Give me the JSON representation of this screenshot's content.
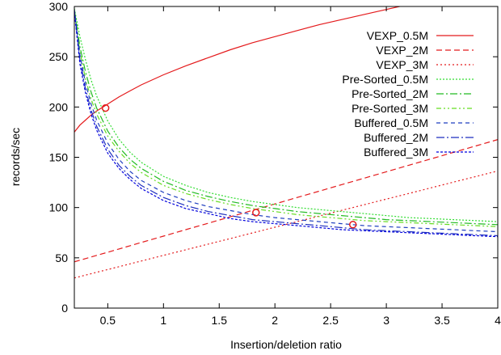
{
  "chart_data": {
    "type": "line",
    "title": "",
    "xlabel": "Insertion/deletion ratio",
    "ylabel": "records/sec",
    "xlim": [
      0.2,
      4
    ],
    "ylim": [
      0,
      300
    ],
    "x_ticks": [
      "0.5",
      "1",
      "1.5",
      "2",
      "2.5",
      "3",
      "3.5",
      "4"
    ],
    "x_tick_values": [
      0.5,
      1,
      1.5,
      2,
      2.5,
      3,
      3.5,
      4
    ],
    "y_ticks": [
      "0",
      "50",
      "100",
      "150",
      "200",
      "250",
      "300"
    ],
    "y_tick_values": [
      0,
      50,
      100,
      150,
      200,
      250,
      300
    ],
    "grid": false,
    "legend_position": "top-right",
    "x": [
      0.2,
      0.25,
      0.3,
      0.35,
      0.4,
      0.5,
      0.6,
      0.7,
      0.8,
      1.0,
      1.2,
      1.4,
      1.6,
      1.8,
      2.0,
      2.2,
      2.4,
      2.6,
      2.8,
      3.0,
      3.2,
      3.4,
      3.6,
      3.8,
      4.0
    ],
    "series": [
      {
        "name": "VEXP_0.5M",
        "color": "#e41a1c",
        "dash": "",
        "values": [
          175,
          182,
          187,
          192,
          196,
          203,
          210,
          216,
          222,
          232,
          241,
          249,
          257,
          264,
          270,
          276,
          282,
          287,
          292,
          297,
          302,
          306,
          310,
          314,
          318
        ]
      },
      {
        "name": "VEXP_2M",
        "color": "#e41a1c",
        "dash": "7,4",
        "values": [
          46,
          47.6,
          49.2,
          50.8,
          52.4,
          55.6,
          58.8,
          62,
          65.2,
          71.6,
          78,
          84.4,
          90.8,
          97.2,
          103.6,
          110,
          116.4,
          122.8,
          129.2,
          135.6,
          142,
          148.4,
          154.8,
          161.2,
          167.6
        ]
      },
      {
        "name": "VEXP_3M",
        "color": "#e41a1c",
        "dash": "2,3",
        "values": [
          30,
          31.4,
          32.8,
          34.2,
          35.6,
          38.4,
          41.2,
          44,
          46.8,
          52.4,
          58,
          63.6,
          69.2,
          74.8,
          80.4,
          86,
          91.6,
          97.2,
          102.8,
          108.4,
          114,
          119.6,
          125.2,
          130.8,
          136.4
        ]
      },
      {
        "name": "Pre-Sorted_0.5M",
        "color": "#33dd33",
        "dash": "2,2",
        "values": [
          298,
          270,
          247,
          227,
          211,
          186,
          168,
          155,
          145,
          131,
          122,
          115,
          110,
          106,
          103,
          100,
          98,
          96,
          94,
          92,
          90,
          89,
          88,
          87,
          86
        ]
      },
      {
        "name": "Pre-Sorted_2M",
        "color": "#22bb22",
        "dash": "9,3,2,3",
        "values": [
          297,
          260,
          235,
          215,
          199,
          176,
          160,
          148,
          139,
          126,
          117,
          111,
          106,
          102,
          99,
          96,
          94,
          92,
          90,
          88,
          87,
          86,
          85,
          84,
          83
        ]
      },
      {
        "name": "Pre-Sorted_3M",
        "color": "#66dd22",
        "dash": "6,3,2,3,2,3",
        "values": [
          296,
          255,
          228,
          208,
          193,
          171,
          156,
          144,
          135,
          122,
          114,
          108,
          103,
          99,
          96,
          93,
          91,
          89,
          87,
          86,
          85,
          84,
          83,
          82,
          81
        ]
      },
      {
        "name": "Buffered_0.5M",
        "color": "#1f3fbf",
        "dash": "5,4",
        "values": [
          297,
          252,
          224,
          203,
          187,
          164,
          148,
          136,
          127,
          115,
          107,
          101,
          97,
          93,
          90,
          88,
          86,
          84,
          82,
          81,
          80,
          79,
          78,
          77,
          76
        ]
      },
      {
        "name": "Buffered_2M",
        "color": "#1f2fbf",
        "dash": "10,3,2,3",
        "values": [
          296,
          247,
          218,
          197,
          181,
          158,
          142,
          131,
          122,
          110,
          102,
          96,
          92,
          88,
          86,
          84,
          82,
          80,
          78,
          77,
          76,
          75,
          74,
          73,
          72
        ]
      },
      {
        "name": "Buffered_3M",
        "color": "#0000dd",
        "dash": "3,2",
        "values": [
          295,
          243,
          214,
          193,
          177,
          154,
          139,
          128,
          119,
          107,
          99,
          94,
          89,
          86,
          84,
          82,
          80,
          78,
          77,
          76,
          75,
          74,
          73,
          72,
          71
        ]
      }
    ],
    "markers": [
      {
        "x": 0.48,
        "y": 199,
        "color": "#e41a1c"
      },
      {
        "x": 1.83,
        "y": 95,
        "color": "#e41a1c"
      },
      {
        "x": 2.7,
        "y": 83,
        "color": "#e41a1c"
      }
    ]
  }
}
